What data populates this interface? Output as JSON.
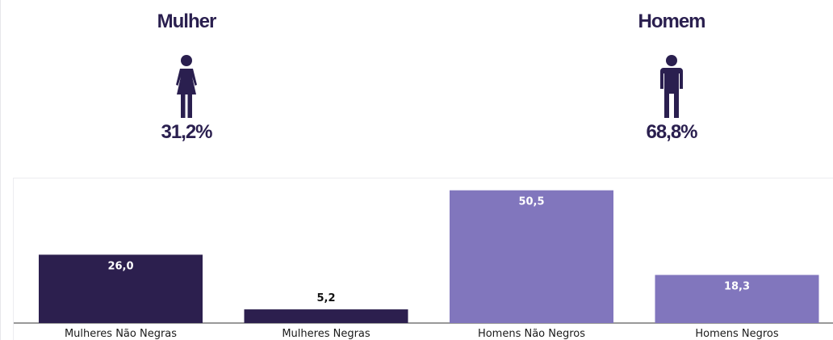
{
  "summary": {
    "women": {
      "title": "Mulher",
      "value": "31,2%",
      "icon": "female-person-icon"
    },
    "men": {
      "title": "Homem",
      "value": "68,8%",
      "icon": "male-person-icon"
    }
  },
  "colors": {
    "dark": "#2c1f4e",
    "light": "#8176bd",
    "text_dark": "#2a1f4f"
  },
  "chart_data": {
    "type": "bar",
    "categories": [
      "Mulheres Não Negras",
      "Mulheres Negras",
      "Homens Não Negros",
      "Homens Negros"
    ],
    "values": [
      26.0,
      5.2,
      50.5,
      18.3
    ],
    "value_labels": [
      "26,0",
      "5,2",
      "50,5",
      "18,3"
    ],
    "bar_colors": [
      "#2c1f4e",
      "#2c1f4e",
      "#8176bd",
      "#8176bd"
    ],
    "title": "",
    "xlabel": "",
    "ylabel": "",
    "ylim": [
      0,
      55
    ],
    "grid": false,
    "legend": "none"
  }
}
